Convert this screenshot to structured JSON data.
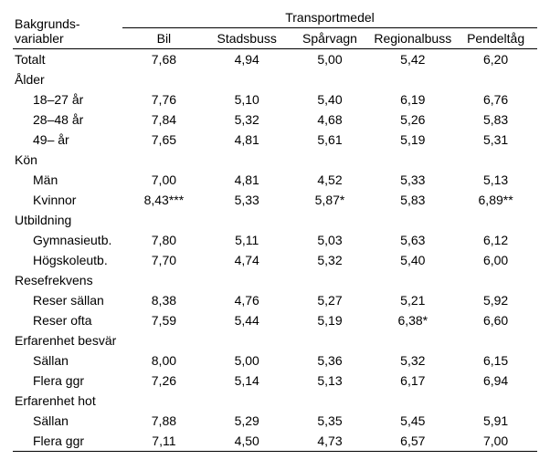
{
  "header": {
    "left_line1": "Bakgrunds-",
    "left_line2": "variabler",
    "spanning": "Transportmedel",
    "cols": [
      "Bil",
      "Stadsbuss",
      "Spårvagn",
      "Regionalbuss",
      "Pendeltåg"
    ]
  },
  "rows": [
    {
      "type": "section",
      "label": "Totalt",
      "values": [
        "7,68",
        "4,94",
        "5,00",
        "5,42",
        "6,20"
      ]
    },
    {
      "type": "section",
      "label": "Ålder"
    },
    {
      "type": "indent",
      "label": "18–27 år",
      "values": [
        "7,76",
        "5,10",
        "5,40",
        "6,19",
        "6,76"
      ]
    },
    {
      "type": "indent",
      "label": "28–48 år",
      "values": [
        "7,84",
        "5,32",
        "4,68",
        "5,26",
        "5,83"
      ]
    },
    {
      "type": "indent",
      "label": "49– år",
      "values": [
        "7,65",
        "4,81",
        "5,61",
        "5,19",
        "5,31"
      ]
    },
    {
      "type": "section",
      "label": "Kön"
    },
    {
      "type": "indent",
      "label": "Män",
      "values": [
        "7,00",
        "4,81",
        "4,52",
        "5,33",
        "5,13"
      ]
    },
    {
      "type": "indent",
      "label": "Kvinnor",
      "values": [
        "8,43***",
        "5,33",
        "5,87*",
        "5,83",
        "6,89**"
      ]
    },
    {
      "type": "section",
      "label": "Utbildning"
    },
    {
      "type": "indent",
      "label": "Gymnasieutb.",
      "values": [
        "7,80",
        "5,11",
        "5,03",
        "5,63",
        "6,12"
      ]
    },
    {
      "type": "indent",
      "label": "Högskoleutb.",
      "values": [
        "7,70",
        "4,74",
        "5,32",
        "5,40",
        "6,00"
      ]
    },
    {
      "type": "section",
      "label": "Resefrekvens"
    },
    {
      "type": "indent",
      "label": "Reser sällan",
      "values": [
        "8,38",
        "4,76",
        "5,27",
        "5,21",
        "5,92"
      ]
    },
    {
      "type": "indent",
      "label": "Reser ofta",
      "values": [
        "7,59",
        "5,44",
        "5,19",
        "6,38*",
        "6,60"
      ]
    },
    {
      "type": "section",
      "label": "Erfarenhet besvär"
    },
    {
      "type": "indent",
      "label": "Sällan",
      "values": [
        "8,00",
        "5,00",
        "5,36",
        "5,32",
        "6,15"
      ]
    },
    {
      "type": "indent",
      "label": "Flera ggr",
      "values": [
        "7,26",
        "5,14",
        "5,13",
        "6,17",
        "6,94"
      ]
    },
    {
      "type": "section",
      "label": "Erfarenhet hot"
    },
    {
      "type": "indent",
      "label": "Sällan",
      "values": [
        "7,88",
        "5,29",
        "5,35",
        "5,45",
        "5,91"
      ]
    },
    {
      "type": "indent",
      "label": "Flera ggr",
      "values": [
        "7,11",
        "4,50",
        "4,73",
        "6,57",
        "7,00"
      ],
      "last": true
    }
  ]
}
